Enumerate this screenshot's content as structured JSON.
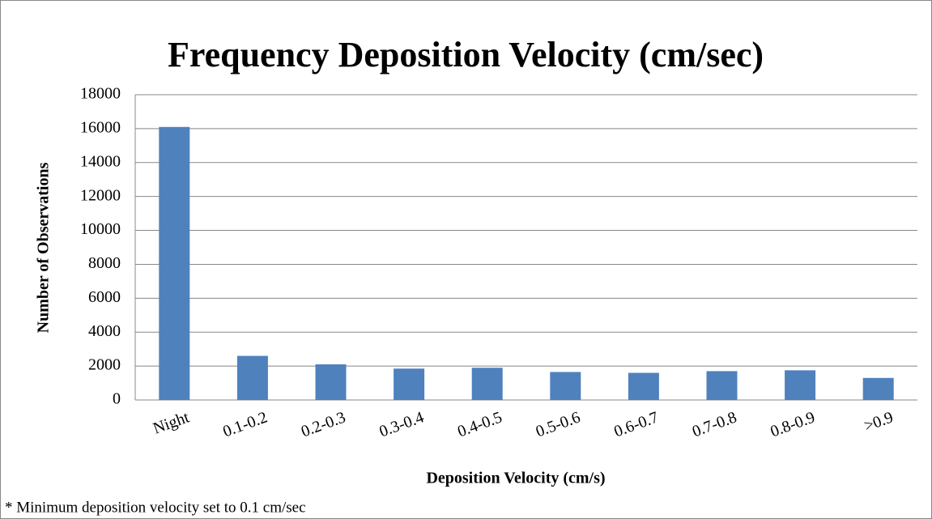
{
  "chart_data": {
    "type": "bar",
    "title": "Frequency Deposition Velocity (cm/sec)",
    "x_label": "Deposition Velocity (cm/s)",
    "y_label": "Number of Observations",
    "note": "* Minimum deposition velocity set to 0.1 cm/sec",
    "categories": [
      "Night",
      "0.1-0.2",
      "0.2-0.3",
      "0.3-0.4",
      "0.4-0.5",
      "0.5-0.6",
      "0.6-0.7",
      "0.7-0.8",
      "0.8-0.9",
      ">0.9"
    ],
    "values": [
      16100,
      2600,
      2100,
      1850,
      1900,
      1650,
      1600,
      1700,
      1750,
      1300
    ],
    "color": "#4f81bd",
    "ylim": [
      0,
      18000
    ],
    "yticks": [
      0,
      2000,
      4000,
      6000,
      8000,
      10000,
      12000,
      14000,
      16000,
      18000
    ],
    "grid": true
  }
}
